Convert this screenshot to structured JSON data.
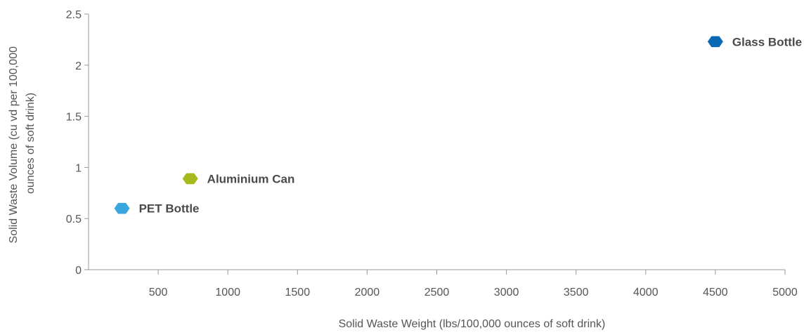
{
  "chart_data": {
    "type": "scatter",
    "title": "",
    "xlabel": "Solid Waste Weight (lbs/100,000 ounces of soft drink)",
    "ylabel_lines": [
      "Solid Waste Volume (cu vd per 100,000",
      "ounces of soft drink)"
    ],
    "xlim": [
      0,
      5000
    ],
    "ylim": [
      0,
      2.5
    ],
    "x_ticks": [
      500,
      1000,
      1500,
      2000,
      2500,
      3000,
      3500,
      4000,
      4500,
      5000
    ],
    "x_tick_labels": [
      "500",
      "1000",
      "1500",
      "2000",
      "2500",
      "3000",
      "3500",
      "4000",
      "4500",
      "5000"
    ],
    "y_ticks": [
      0,
      0.5,
      1,
      1.5,
      2,
      2.5
    ],
    "y_tick_labels": [
      "0",
      "0.5",
      "1",
      "1.5",
      "2",
      "2.5"
    ],
    "grid": false,
    "legend": "none",
    "points": [
      {
        "label": "PET Bottle",
        "x": 240,
        "y": 0.6,
        "color": "#3aa6df"
      },
      {
        "label": "Aluminium Can",
        "x": 730,
        "y": 0.89,
        "color": "#a6b91d"
      },
      {
        "label": "Glass Bottle",
        "x": 4500,
        "y": 2.23,
        "color": "#0a67b4"
      }
    ]
  }
}
